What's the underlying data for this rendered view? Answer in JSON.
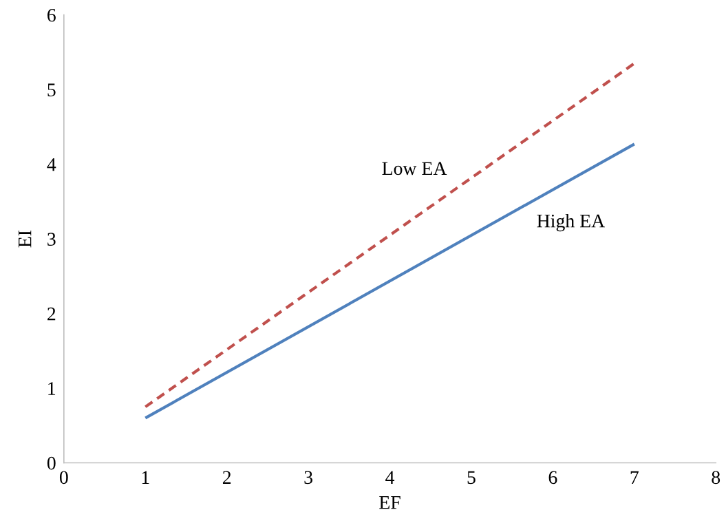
{
  "chart_data": {
    "type": "line",
    "xlabel": "EF",
    "ylabel": "EI",
    "xlim": [
      0,
      8
    ],
    "xticks": [
      0,
      1,
      2,
      3,
      4,
      5,
      6,
      7,
      8
    ],
    "ylim": [
      0,
      6
    ],
    "yticks": [
      0,
      1,
      2,
      3,
      4,
      5,
      6
    ],
    "grid": false,
    "legend": false,
    "marker": "none",
    "x": [
      1,
      7
    ],
    "series": [
      {
        "name": "Low EA",
        "color": "#c0504d",
        "line_style": "dashed",
        "values": [
          0.75,
          5.35
        ]
      },
      {
        "name": "High EA",
        "color": "#4f81bd",
        "line_style": "solid",
        "values": [
          0.6,
          4.27
        ]
      }
    ]
  }
}
